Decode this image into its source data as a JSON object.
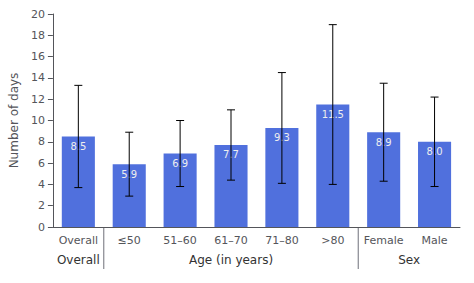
{
  "chart_data": {
    "type": "bar",
    "ylabel": "Number of days",
    "categories": [
      "Overall",
      "≤50",
      "51–60",
      "61–70",
      "71–80",
      ">80",
      "Female",
      "Male"
    ],
    "values": [
      8.5,
      5.9,
      6.9,
      7.7,
      9.3,
      11.5,
      8.9,
      8.0
    ],
    "value_labels": [
      "8.5",
      "5.9",
      "6.9",
      "7.7",
      "9.3",
      "11.5",
      "8.9",
      "8.0"
    ],
    "errors": [
      4.8,
      3.0,
      3.1,
      3.3,
      5.2,
      7.5,
      4.6,
      4.2
    ],
    "groups": [
      {
        "label": "Overall",
        "categories": [
          "Overall"
        ]
      },
      {
        "label": "Age (in years)",
        "categories": [
          "≤50",
          "51–60",
          "61–70",
          "71–80",
          ">80"
        ]
      },
      {
        "label": "Sex",
        "categories": [
          "Female",
          "Male"
        ]
      }
    ],
    "ylim": [
      0,
      20
    ],
    "yticks": [
      0,
      2,
      4,
      6,
      8,
      10,
      12,
      14,
      16,
      18,
      20
    ],
    "grid": false,
    "data_labels": true
  }
}
